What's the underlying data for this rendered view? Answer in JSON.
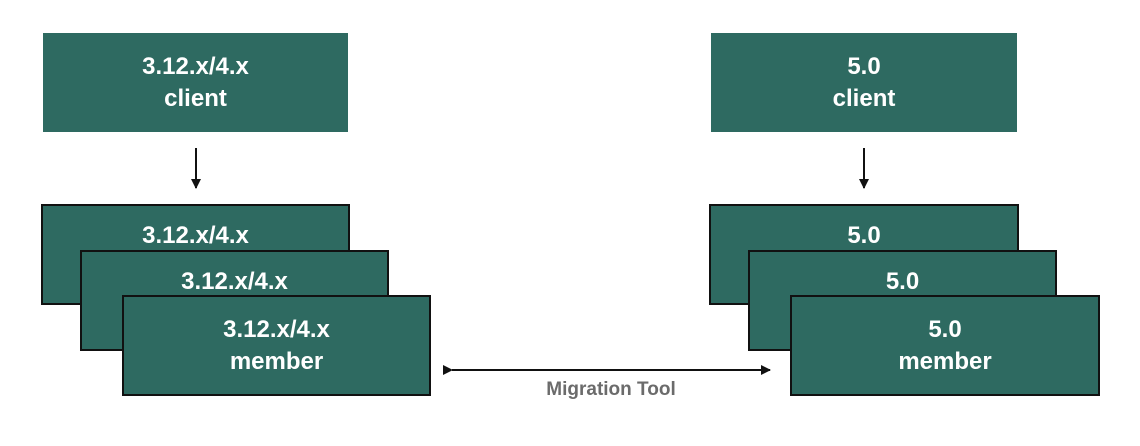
{
  "left": {
    "client": {
      "line1": "3.12.x/4.x",
      "line2": "client"
    },
    "member_back": {
      "line1": "3.12.x/4.x"
    },
    "member_middle": {
      "line1": "3.12.x/4.x"
    },
    "member_front": {
      "line1": "3.12.x/4.x",
      "line2": "member"
    }
  },
  "right": {
    "client": {
      "line1": "5.0",
      "line2": "client"
    },
    "member_back": {
      "line1": "5.0"
    },
    "member_middle": {
      "line1": "5.0"
    },
    "member_front": {
      "line1": "5.0",
      "line2": "member"
    }
  },
  "connector": {
    "label": "Migration Tool"
  },
  "colors": {
    "box_fill": "#2e6a61",
    "box_text": "#ffffff",
    "border": "#111111",
    "label": "#6b6b6b"
  }
}
